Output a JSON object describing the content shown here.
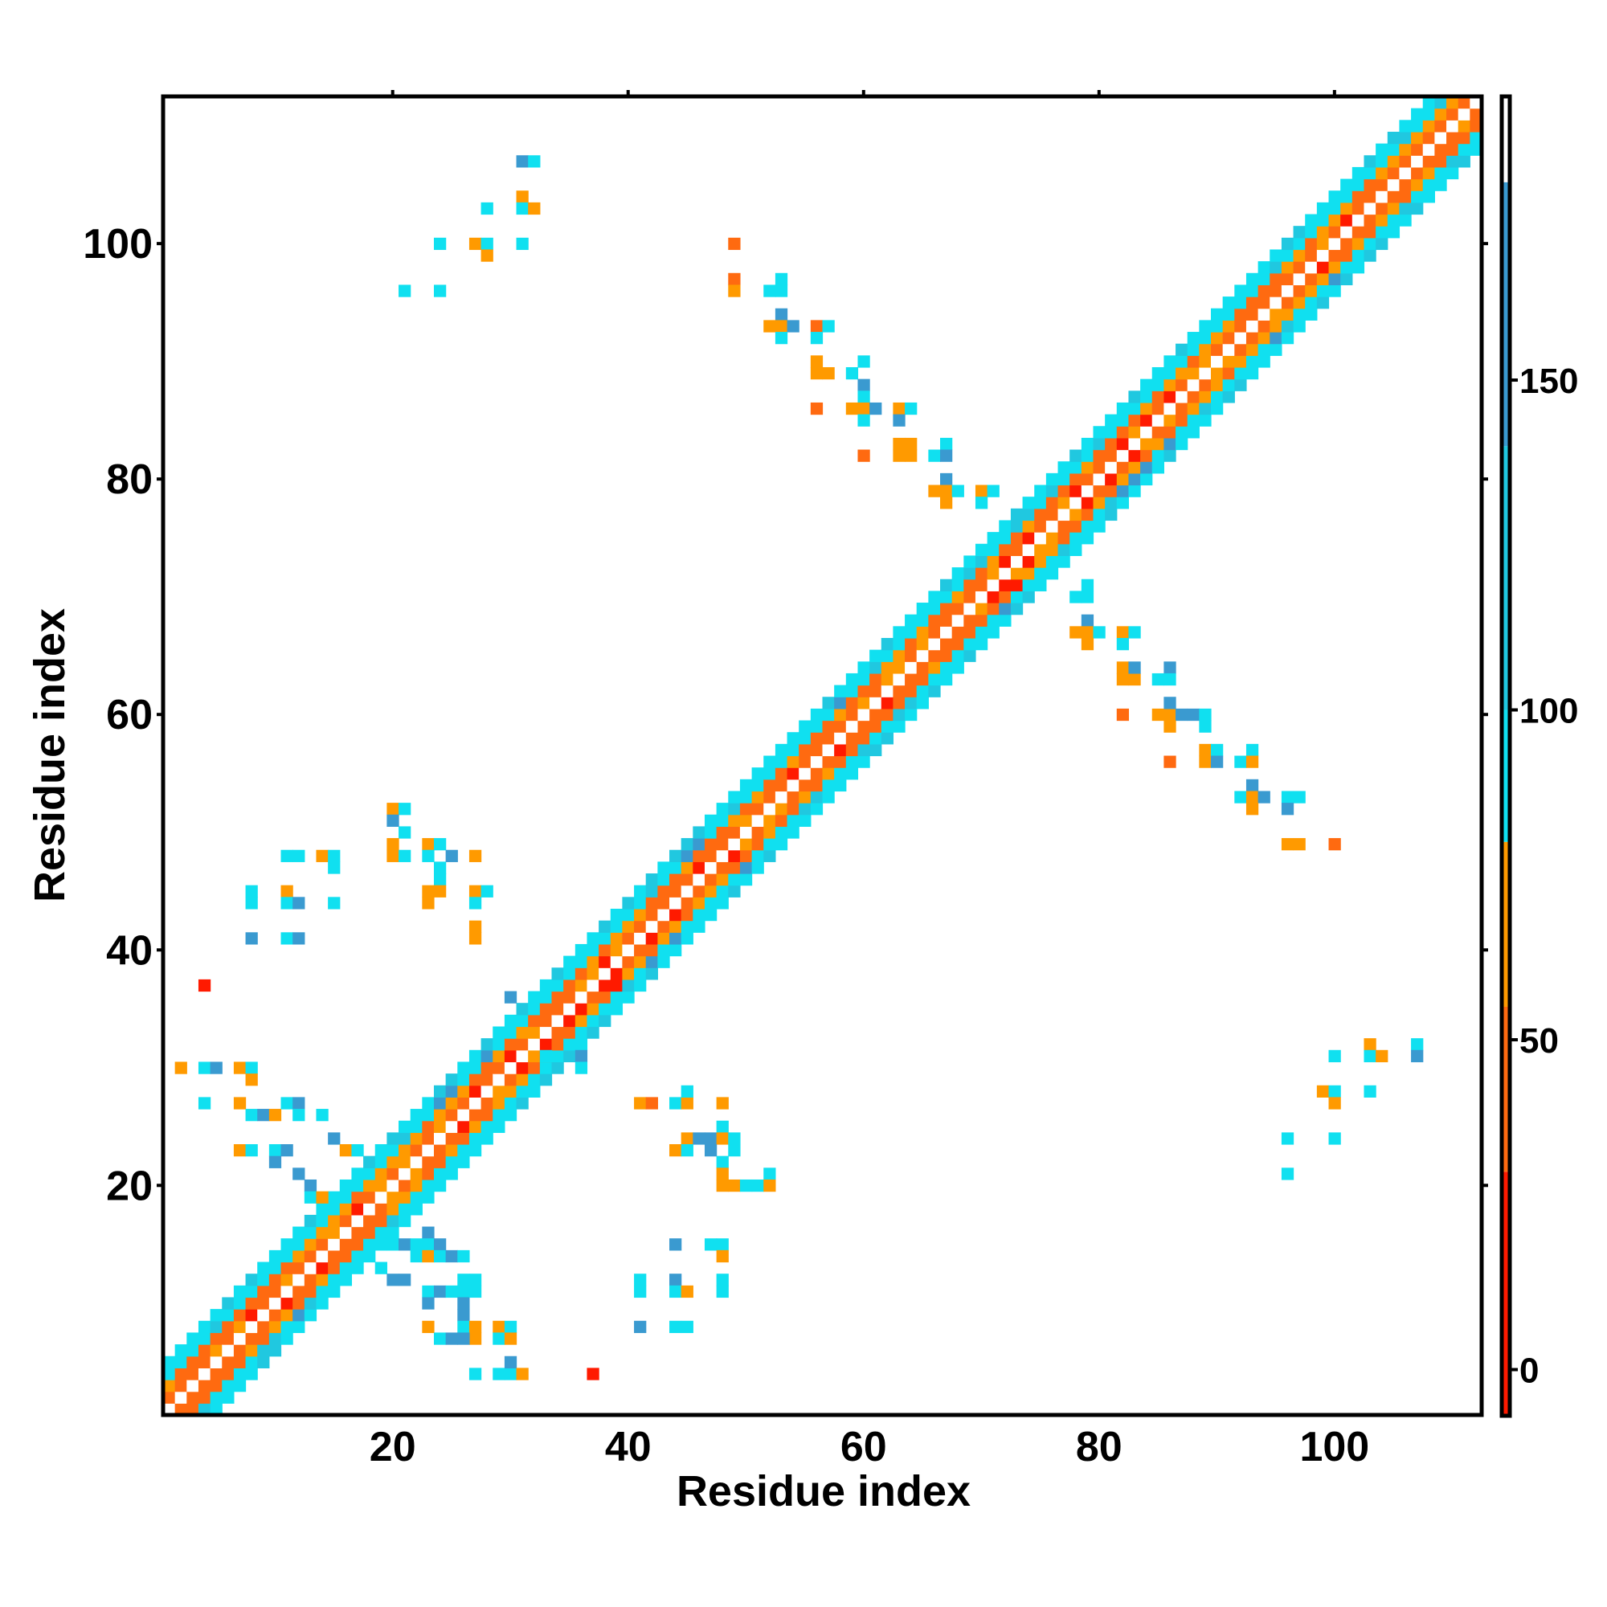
{
  "chart_data": {
    "type": "heatmap",
    "xlabel": "Residue index",
    "ylabel": "Residue index",
    "xlim": [
      1,
      112
    ],
    "ylim": [
      1,
      112
    ],
    "x_ticks": [
      20,
      40,
      60,
      80,
      100
    ],
    "y_ticks": [
      20,
      40,
      60,
      80,
      100
    ],
    "colorbar": {
      "range": [
        -7,
        193
      ],
      "ticks": [
        0,
        50,
        100,
        150
      ],
      "bands": [
        {
          "from": -7,
          "to": 30,
          "color": "#ff1a00"
        },
        {
          "from": 30,
          "to": 55,
          "color": "#ff6a10"
        },
        {
          "from": 55,
          "to": 80,
          "color": "#ff9a00"
        },
        {
          "from": 80,
          "to": 100,
          "color": "#10e0f0"
        },
        {
          "from": 100,
          "to": 140,
          "color": "#20c8e0"
        },
        {
          "from": 140,
          "to": 180,
          "color": "#3a9ad0"
        },
        {
          "from": 180,
          "to": 193,
          "color": "#ffffff"
        }
      ]
    },
    "diagonal_band": {
      "halfwidth": 4,
      "gaps": [
        38,
        72
      ]
    },
    "offdiag_contacts": [
      {
        "x": 4,
        "y": 37,
        "v": 10
      },
      {
        "x": 2,
        "y": 30,
        "v": 60
      },
      {
        "x": 4,
        "y": 30,
        "v": 90
      },
      {
        "x": 5,
        "y": 30,
        "v": 140
      },
      {
        "x": 7,
        "y": 30,
        "v": 60
      },
      {
        "x": 8,
        "y": 30,
        "v": 90
      },
      {
        "x": 8,
        "y": 29,
        "v": 60
      },
      {
        "x": 4,
        "y": 27,
        "v": 90
      },
      {
        "x": 7,
        "y": 27,
        "v": 60
      },
      {
        "x": 8,
        "y": 26,
        "v": 90
      },
      {
        "x": 9,
        "y": 26,
        "v": 140
      },
      {
        "x": 10,
        "y": 26,
        "v": 60
      },
      {
        "x": 11,
        "y": 27,
        "v": 90
      },
      {
        "x": 12,
        "y": 27,
        "v": 140
      },
      {
        "x": 12,
        "y": 26,
        "v": 90
      },
      {
        "x": 7,
        "y": 23,
        "v": 60
      },
      {
        "x": 8,
        "y": 23,
        "v": 90
      },
      {
        "x": 10,
        "y": 23,
        "v": 90
      },
      {
        "x": 11,
        "y": 23,
        "v": 140
      },
      {
        "x": 14,
        "y": 26,
        "v": 90
      },
      {
        "x": 15,
        "y": 24,
        "v": 140
      },
      {
        "x": 16,
        "y": 23,
        "v": 60
      },
      {
        "x": 17,
        "y": 23,
        "v": 90
      },
      {
        "x": 10,
        "y": 22,
        "v": 140
      },
      {
        "x": 12,
        "y": 21,
        "v": 140
      },
      {
        "x": 13,
        "y": 20,
        "v": 140
      },
      {
        "x": 13,
        "y": 19,
        "v": 90
      },
      {
        "x": 14,
        "y": 19,
        "v": 60
      },
      {
        "x": 8,
        "y": 45,
        "v": 90
      },
      {
        "x": 8,
        "y": 44,
        "v": 90
      },
      {
        "x": 11,
        "y": 45,
        "v": 60
      },
      {
        "x": 11,
        "y": 44,
        "v": 90
      },
      {
        "x": 12,
        "y": 44,
        "v": 140
      },
      {
        "x": 15,
        "y": 44,
        "v": 90
      },
      {
        "x": 11,
        "y": 48,
        "v": 90
      },
      {
        "x": 12,
        "y": 48,
        "v": 90
      },
      {
        "x": 14,
        "y": 48,
        "v": 60
      },
      {
        "x": 15,
        "y": 48,
        "v": 90
      },
      {
        "x": 15,
        "y": 47,
        "v": 90
      },
      {
        "x": 8,
        "y": 41,
        "v": 140
      },
      {
        "x": 11,
        "y": 41,
        "v": 90
      },
      {
        "x": 12,
        "y": 41,
        "v": 140
      },
      {
        "x": 20,
        "y": 52,
        "v": 60
      },
      {
        "x": 21,
        "y": 52,
        "v": 90
      },
      {
        "x": 20,
        "y": 51,
        "v": 140
      },
      {
        "x": 21,
        "y": 50,
        "v": 90
      },
      {
        "x": 20,
        "y": 49,
        "v": 60
      },
      {
        "x": 20,
        "y": 48,
        "v": 60
      },
      {
        "x": 21,
        "y": 48,
        "v": 90
      },
      {
        "x": 23,
        "y": 49,
        "v": 60
      },
      {
        "x": 24,
        "y": 49,
        "v": 90
      },
      {
        "x": 23,
        "y": 48,
        "v": 90
      },
      {
        "x": 24,
        "y": 47,
        "v": 90
      },
      {
        "x": 25,
        "y": 48,
        "v": 140
      },
      {
        "x": 27,
        "y": 48,
        "v": 60
      },
      {
        "x": 24,
        "y": 46,
        "v": 90
      },
      {
        "x": 23,
        "y": 45,
        "v": 60
      },
      {
        "x": 24,
        "y": 45,
        "v": 60
      },
      {
        "x": 23,
        "y": 44,
        "v": 60
      },
      {
        "x": 27,
        "y": 45,
        "v": 60
      },
      {
        "x": 28,
        "y": 45,
        "v": 90
      },
      {
        "x": 27,
        "y": 44,
        "v": 90
      },
      {
        "x": 27,
        "y": 42,
        "v": 60
      },
      {
        "x": 27,
        "y": 41,
        "v": 60
      },
      {
        "x": 31,
        "y": 107,
        "v": 140
      },
      {
        "x": 32,
        "y": 107,
        "v": 90
      },
      {
        "x": 31,
        "y": 104,
        "v": 60
      },
      {
        "x": 31,
        "y": 103,
        "v": 90
      },
      {
        "x": 32,
        "y": 103,
        "v": 60
      },
      {
        "x": 28,
        "y": 103,
        "v": 90
      },
      {
        "x": 24,
        "y": 100,
        "v": 90
      },
      {
        "x": 27,
        "y": 100,
        "v": 60
      },
      {
        "x": 28,
        "y": 100,
        "v": 90
      },
      {
        "x": 28,
        "y": 99,
        "v": 60
      },
      {
        "x": 31,
        "y": 100,
        "v": 90
      },
      {
        "x": 21,
        "y": 96,
        "v": 90
      },
      {
        "x": 24,
        "y": 96,
        "v": 90
      },
      {
        "x": 49,
        "y": 100,
        "v": 40
      },
      {
        "x": 49,
        "y": 97,
        "v": 40
      },
      {
        "x": 49,
        "y": 96,
        "v": 60
      },
      {
        "x": 52,
        "y": 96,
        "v": 90
      },
      {
        "x": 53,
        "y": 97,
        "v": 90
      },
      {
        "x": 53,
        "y": 96,
        "v": 90
      },
      {
        "x": 53,
        "y": 94,
        "v": 140
      },
      {
        "x": 52,
        "y": 93,
        "v": 60
      },
      {
        "x": 53,
        "y": 93,
        "v": 60
      },
      {
        "x": 54,
        "y": 93,
        "v": 140
      },
      {
        "x": 53,
        "y": 92,
        "v": 90
      },
      {
        "x": 56,
        "y": 93,
        "v": 40
      },
      {
        "x": 57,
        "y": 93,
        "v": 90
      },
      {
        "x": 56,
        "y": 92,
        "v": 90
      },
      {
        "x": 56,
        "y": 90,
        "v": 60
      },
      {
        "x": 56,
        "y": 89,
        "v": 60
      },
      {
        "x": 57,
        "y": 89,
        "v": 60
      },
      {
        "x": 59,
        "y": 89,
        "v": 90
      },
      {
        "x": 60,
        "y": 90,
        "v": 90
      },
      {
        "x": 60,
        "y": 88,
        "v": 140
      },
      {
        "x": 60,
        "y": 87,
        "v": 90
      },
      {
        "x": 56,
        "y": 86,
        "v": 40
      },
      {
        "x": 59,
        "y": 86,
        "v": 60
      },
      {
        "x": 60,
        "y": 86,
        "v": 60
      },
      {
        "x": 61,
        "y": 86,
        "v": 140
      },
      {
        "x": 60,
        "y": 85,
        "v": 90
      },
      {
        "x": 63,
        "y": 86,
        "v": 60
      },
      {
        "x": 64,
        "y": 86,
        "v": 90
      },
      {
        "x": 63,
        "y": 85,
        "v": 140
      },
      {
        "x": 63,
        "y": 83,
        "v": 60
      },
      {
        "x": 64,
        "y": 83,
        "v": 60
      },
      {
        "x": 63,
        "y": 82,
        "v": 60
      },
      {
        "x": 64,
        "y": 82,
        "v": 60
      },
      {
        "x": 66,
        "y": 82,
        "v": 90
      },
      {
        "x": 67,
        "y": 83,
        "v": 90
      },
      {
        "x": 67,
        "y": 82,
        "v": 140
      },
      {
        "x": 60,
        "y": 82,
        "v": 40
      },
      {
        "x": 67,
        "y": 80,
        "v": 140
      },
      {
        "x": 66,
        "y": 79,
        "v": 60
      },
      {
        "x": 67,
        "y": 79,
        "v": 60
      },
      {
        "x": 68,
        "y": 79,
        "v": 90
      },
      {
        "x": 67,
        "y": 78,
        "v": 60
      },
      {
        "x": 70,
        "y": 79,
        "v": 60
      },
      {
        "x": 71,
        "y": 79,
        "v": 90
      },
      {
        "x": 70,
        "y": 78,
        "v": 90
      },
      {
        "x": 79,
        "y": 71,
        "v": 90
      },
      {
        "x": 78,
        "y": 70,
        "v": 90
      },
      {
        "x": 79,
        "y": 70,
        "v": 90
      },
      {
        "x": 79,
        "y": 68,
        "v": 140
      },
      {
        "x": 78,
        "y": 67,
        "v": 60
      },
      {
        "x": 79,
        "y": 67,
        "v": 60
      },
      {
        "x": 80,
        "y": 67,
        "v": 90
      },
      {
        "x": 79,
        "y": 66,
        "v": 60
      },
      {
        "x": 82,
        "y": 67,
        "v": 60
      },
      {
        "x": 83,
        "y": 67,
        "v": 90
      },
      {
        "x": 82,
        "y": 66,
        "v": 90
      },
      {
        "x": 82,
        "y": 64,
        "v": 60
      },
      {
        "x": 82,
        "y": 63,
        "v": 60
      },
      {
        "x": 83,
        "y": 63,
        "v": 60
      },
      {
        "x": 83,
        "y": 64,
        "v": 140
      },
      {
        "x": 85,
        "y": 63,
        "v": 90
      },
      {
        "x": 86,
        "y": 64,
        "v": 140
      },
      {
        "x": 86,
        "y": 63,
        "v": 90
      },
      {
        "x": 82,
        "y": 60,
        "v": 40
      },
      {
        "x": 85,
        "y": 60,
        "v": 60
      },
      {
        "x": 86,
        "y": 60,
        "v": 60
      },
      {
        "x": 86,
        "y": 61,
        "v": 140
      },
      {
        "x": 87,
        "y": 60,
        "v": 140
      },
      {
        "x": 88,
        "y": 60,
        "v": 140
      },
      {
        "x": 89,
        "y": 60,
        "v": 90
      },
      {
        "x": 86,
        "y": 59,
        "v": 60
      },
      {
        "x": 89,
        "y": 59,
        "v": 90
      },
      {
        "x": 86,
        "y": 56,
        "v": 40
      },
      {
        "x": 89,
        "y": 57,
        "v": 60
      },
      {
        "x": 90,
        "y": 57,
        "v": 90
      },
      {
        "x": 89,
        "y": 56,
        "v": 60
      },
      {
        "x": 90,
        "y": 56,
        "v": 140
      },
      {
        "x": 92,
        "y": 56,
        "v": 90
      },
      {
        "x": 93,
        "y": 57,
        "v": 90
      },
      {
        "x": 93,
        "y": 56,
        "v": 60
      },
      {
        "x": 93,
        "y": 54,
        "v": 140
      },
      {
        "x": 92,
        "y": 53,
        "v": 90
      },
      {
        "x": 93,
        "y": 53,
        "v": 60
      },
      {
        "x": 94,
        "y": 53,
        "v": 140
      },
      {
        "x": 93,
        "y": 52,
        "v": 60
      },
      {
        "x": 96,
        "y": 53,
        "v": 90
      },
      {
        "x": 97,
        "y": 53,
        "v": 90
      },
      {
        "x": 96,
        "y": 52,
        "v": 140
      },
      {
        "x": 96,
        "y": 49,
        "v": 60
      },
      {
        "x": 97,
        "y": 49,
        "v": 60
      },
      {
        "x": 100,
        "y": 49,
        "v": 40
      },
      {
        "x": 41,
        "y": 27,
        "v": 60
      },
      {
        "x": 42,
        "y": 27,
        "v": 40
      },
      {
        "x": 44,
        "y": 27,
        "v": 90
      },
      {
        "x": 45,
        "y": 27,
        "v": 60
      },
      {
        "x": 45,
        "y": 28,
        "v": 90
      },
      {
        "x": 48,
        "y": 27,
        "v": 60
      },
      {
        "x": 45,
        "y": 24,
        "v": 60
      },
      {
        "x": 46,
        "y": 24,
        "v": 140
      },
      {
        "x": 47,
        "y": 24,
        "v": 140
      },
      {
        "x": 48,
        "y": 25,
        "v": 90
      },
      {
        "x": 48,
        "y": 24,
        "v": 60
      },
      {
        "x": 44,
        "y": 23,
        "v": 60
      },
      {
        "x": 45,
        "y": 23,
        "v": 90
      },
      {
        "x": 47,
        "y": 23,
        "v": 140
      },
      {
        "x": 49,
        "y": 24,
        "v": 90
      },
      {
        "x": 49,
        "y": 23,
        "v": 90
      },
      {
        "x": 48,
        "y": 22,
        "v": 90
      },
      {
        "x": 48,
        "y": 21,
        "v": 60
      },
      {
        "x": 48,
        "y": 20,
        "v": 60
      },
      {
        "x": 49,
        "y": 20,
        "v": 60
      },
      {
        "x": 50,
        "y": 20,
        "v": 90
      },
      {
        "x": 51,
        "y": 20,
        "v": 90
      },
      {
        "x": 52,
        "y": 21,
        "v": 90
      },
      {
        "x": 52,
        "y": 20,
        "v": 60
      },
      {
        "x": 44,
        "y": 15,
        "v": 140
      },
      {
        "x": 47,
        "y": 15,
        "v": 90
      },
      {
        "x": 48,
        "y": 15,
        "v": 90
      },
      {
        "x": 48,
        "y": 14,
        "v": 60
      },
      {
        "x": 41,
        "y": 12,
        "v": 90
      },
      {
        "x": 41,
        "y": 11,
        "v": 90
      },
      {
        "x": 44,
        "y": 12,
        "v": 140
      },
      {
        "x": 44,
        "y": 11,
        "v": 90
      },
      {
        "x": 45,
        "y": 11,
        "v": 60
      },
      {
        "x": 48,
        "y": 12,
        "v": 90
      },
      {
        "x": 48,
        "y": 11,
        "v": 90
      },
      {
        "x": 41,
        "y": 8,
        "v": 140
      },
      {
        "x": 44,
        "y": 8,
        "v": 90
      },
      {
        "x": 45,
        "y": 8,
        "v": 90
      },
      {
        "x": 20,
        "y": 15,
        "v": 90
      },
      {
        "x": 21,
        "y": 15,
        "v": 140
      },
      {
        "x": 22,
        "y": 15,
        "v": 90
      },
      {
        "x": 23,
        "y": 16,
        "v": 140
      },
      {
        "x": 23,
        "y": 15,
        "v": 90
      },
      {
        "x": 24,
        "y": 15,
        "v": 140
      },
      {
        "x": 22,
        "y": 14,
        "v": 90
      },
      {
        "x": 23,
        "y": 14,
        "v": 60
      },
      {
        "x": 24,
        "y": 14,
        "v": 90
      },
      {
        "x": 25,
        "y": 14,
        "v": 140
      },
      {
        "x": 26,
        "y": 14,
        "v": 90
      },
      {
        "x": 19,
        "y": 13,
        "v": 90
      },
      {
        "x": 20,
        "y": 12,
        "v": 140
      },
      {
        "x": 21,
        "y": 12,
        "v": 140
      },
      {
        "x": 23,
        "y": 11,
        "v": 90
      },
      {
        "x": 24,
        "y": 11,
        "v": 140
      },
      {
        "x": 25,
        "y": 11,
        "v": 90
      },
      {
        "x": 26,
        "y": 11,
        "v": 90
      },
      {
        "x": 26,
        "y": 12,
        "v": 90
      },
      {
        "x": 27,
        "y": 12,
        "v": 90
      },
      {
        "x": 23,
        "y": 10,
        "v": 140
      },
      {
        "x": 26,
        "y": 10,
        "v": 140
      },
      {
        "x": 27,
        "y": 11,
        "v": 90
      },
      {
        "x": 26,
        "y": 9,
        "v": 140
      },
      {
        "x": 23,
        "y": 8,
        "v": 60
      },
      {
        "x": 26,
        "y": 8,
        "v": 90
      },
      {
        "x": 27,
        "y": 8,
        "v": 60
      },
      {
        "x": 24,
        "y": 7,
        "v": 90
      },
      {
        "x": 25,
        "y": 7,
        "v": 140
      },
      {
        "x": 27,
        "y": 7,
        "v": 60
      },
      {
        "x": 26,
        "y": 7,
        "v": 140
      },
      {
        "x": 29,
        "y": 8,
        "v": 60
      },
      {
        "x": 30,
        "y": 8,
        "v": 90
      },
      {
        "x": 29,
        "y": 7,
        "v": 90
      },
      {
        "x": 30,
        "y": 7,
        "v": 60
      },
      {
        "x": 27,
        "y": 4,
        "v": 90
      },
      {
        "x": 29,
        "y": 4,
        "v": 90
      },
      {
        "x": 30,
        "y": 4,
        "v": 90
      },
      {
        "x": 30,
        "y": 5,
        "v": 140
      },
      {
        "x": 31,
        "y": 4,
        "v": 60
      },
      {
        "x": 37,
        "y": 4,
        "v": 10
      },
      {
        "x": 30,
        "y": 36,
        "v": 140
      },
      {
        "x": 33,
        "y": 31,
        "v": 90
      },
      {
        "x": 36,
        "y": 31,
        "v": 140
      },
      {
        "x": 36,
        "y": 30,
        "v": 90
      },
      {
        "x": 100,
        "y": 31,
        "v": 90
      },
      {
        "x": 103,
        "y": 32,
        "v": 60
      },
      {
        "x": 103,
        "y": 31,
        "v": 90
      },
      {
        "x": 104,
        "y": 31,
        "v": 60
      },
      {
        "x": 107,
        "y": 32,
        "v": 90
      },
      {
        "x": 107,
        "y": 31,
        "v": 140
      },
      {
        "x": 99,
        "y": 28,
        "v": 60
      },
      {
        "x": 100,
        "y": 28,
        "v": 90
      },
      {
        "x": 100,
        "y": 27,
        "v": 60
      },
      {
        "x": 103,
        "y": 28,
        "v": 90
      },
      {
        "x": 96,
        "y": 24,
        "v": 90
      },
      {
        "x": 100,
        "y": 24,
        "v": 90
      },
      {
        "x": 96,
        "y": 21,
        "v": 90
      }
    ]
  }
}
